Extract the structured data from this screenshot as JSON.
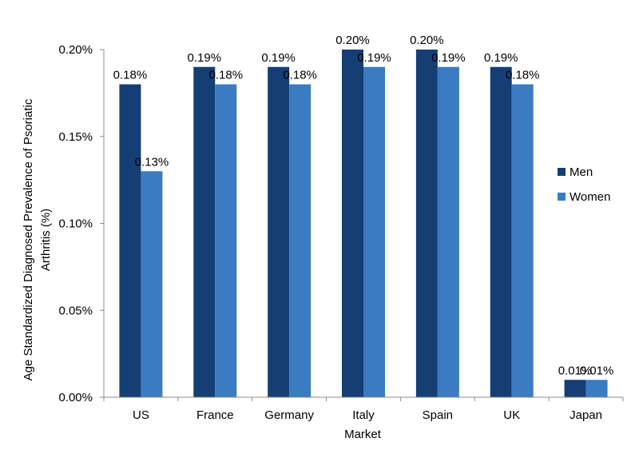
{
  "chart_data": {
    "type": "bar",
    "categories": [
      "US",
      "France",
      "Germany",
      "Italy",
      "Spain",
      "UK",
      "Japan"
    ],
    "series": [
      {
        "name": "Men",
        "values": [
          0.18,
          0.19,
          0.19,
          0.2,
          0.2,
          0.19,
          0.01
        ],
        "color": "#153e75"
      },
      {
        "name": "Women",
        "values": [
          0.13,
          0.18,
          0.18,
          0.19,
          0.19,
          0.18,
          0.01
        ],
        "color": "#3b7bc2"
      }
    ],
    "data_labels": {
      "Men": [
        "0.18%",
        "0.19%",
        "0.19%",
        "0.20%",
        "0.20%",
        "0.19%",
        "0.01%"
      ],
      "Women": [
        "0.13%",
        "0.18%",
        "0.18%",
        "0.19%",
        "0.19%",
        "0.18%",
        "0.01%"
      ]
    },
    "y_ticks": [
      0,
      0.05,
      0.1,
      0.15,
      0.2
    ],
    "y_tick_labels": [
      "0.00%",
      "0.05%",
      "0.10%",
      "0.15%",
      "0.20%"
    ],
    "ylim": [
      0,
      0.2
    ],
    "xlabel": "Market",
    "ylabel_lines": [
      "Age Standardized Diagnosed Prevalence of Psoriatic",
      "Arthritis (%)"
    ],
    "grid": false,
    "legend_position": "right"
  }
}
